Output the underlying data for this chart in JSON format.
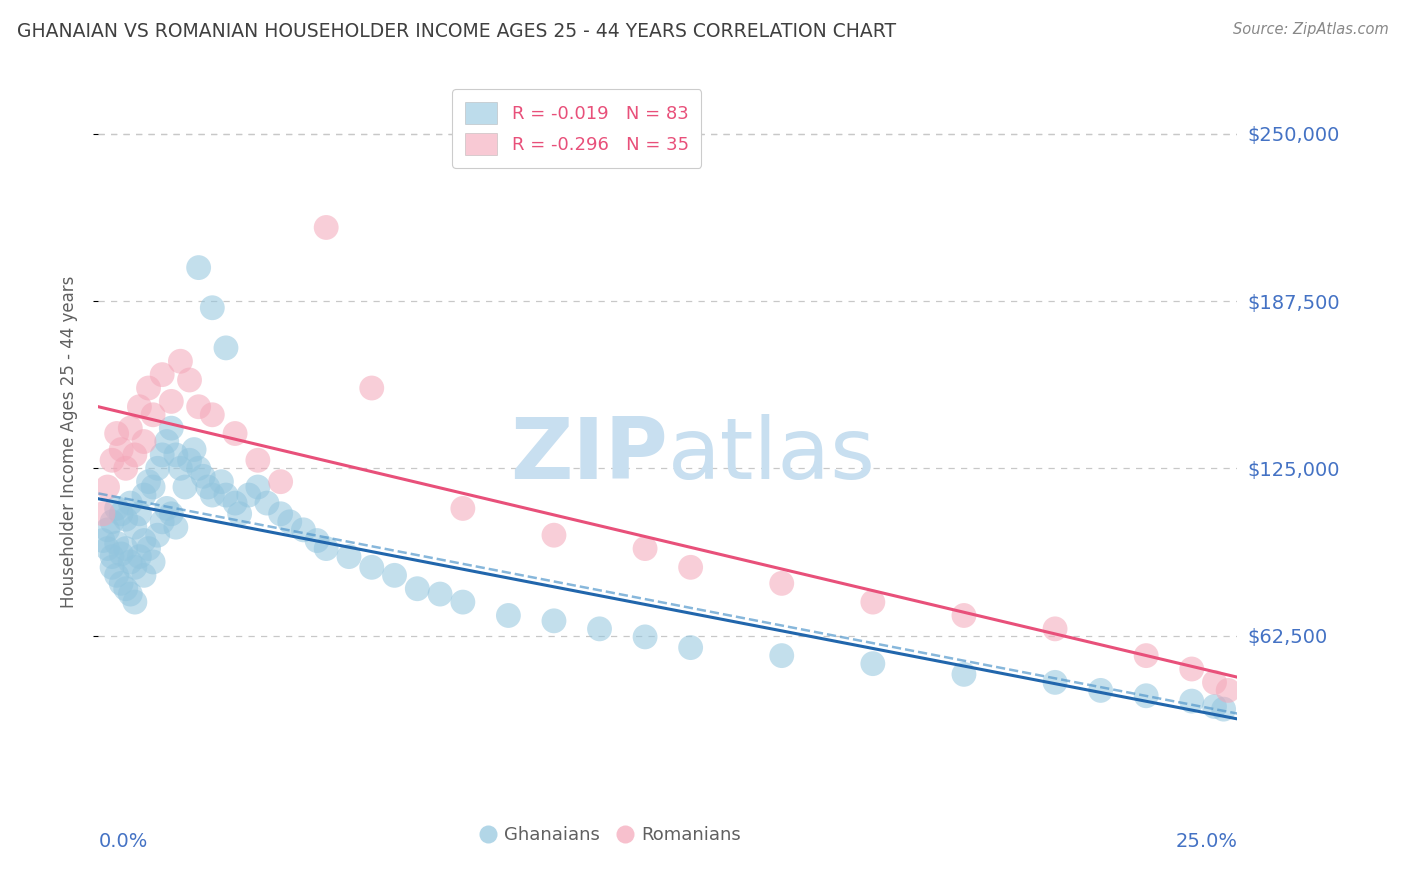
{
  "title": "GHANAIAN VS ROMANIAN HOUSEHOLDER INCOME AGES 25 - 44 YEARS CORRELATION CHART",
  "source": "Source: ZipAtlas.com",
  "ylabel": "Householder Income Ages 25 - 44 years",
  "ytick_labels": [
    "$62,500",
    "$125,000",
    "$187,500",
    "$250,000"
  ],
  "ytick_values": [
    62500,
    125000,
    187500,
    250000
  ],
  "ymin": 0,
  "ymax": 270000,
  "xmin": 0.0,
  "xmax": 0.25,
  "ghanaian_color": "#92c5de",
  "romanian_color": "#f4a6b8",
  "ghanaian_line_color": "#2166ac",
  "romanian_line_color": "#e8507a",
  "ghanaian_R": -0.019,
  "ghanaian_N": 83,
  "romanian_R": -0.296,
  "romanian_N": 35,
  "legend_text_color": "#e8507a",
  "tick_label_color": "#4472c4",
  "title_color": "#404040",
  "source_color": "#888888",
  "axis_label_color": "#606060",
  "grid_color": "#c8c8c8",
  "watermark_color": "#c8dff0",
  "background_color": "#ffffff",
  "gh_x": [
    0.001,
    0.002,
    0.002,
    0.003,
    0.003,
    0.003,
    0.004,
    0.004,
    0.004,
    0.005,
    0.005,
    0.005,
    0.006,
    0.006,
    0.006,
    0.007,
    0.007,
    0.007,
    0.008,
    0.008,
    0.008,
    0.009,
    0.009,
    0.01,
    0.01,
    0.01,
    0.011,
    0.011,
    0.012,
    0.012,
    0.013,
    0.013,
    0.014,
    0.014,
    0.015,
    0.015,
    0.016,
    0.016,
    0.017,
    0.017,
    0.018,
    0.019,
    0.02,
    0.021,
    0.022,
    0.023,
    0.024,
    0.025,
    0.027,
    0.028,
    0.03,
    0.031,
    0.033,
    0.035,
    0.037,
    0.04,
    0.042,
    0.045,
    0.048,
    0.05,
    0.055,
    0.06,
    0.065,
    0.07,
    0.075,
    0.08,
    0.09,
    0.1,
    0.11,
    0.12,
    0.13,
    0.15,
    0.17,
    0.19,
    0.21,
    0.22,
    0.23,
    0.24,
    0.245,
    0.247,
    0.022,
    0.025,
    0.028
  ],
  "gh_y": [
    98000,
    102000,
    95000,
    105000,
    92000,
    88000,
    110000,
    97000,
    85000,
    108000,
    93000,
    82000,
    106000,
    95000,
    80000,
    112000,
    90000,
    78000,
    103000,
    88000,
    75000,
    108000,
    92000,
    115000,
    98000,
    85000,
    120000,
    95000,
    118000,
    90000,
    125000,
    100000,
    130000,
    105000,
    135000,
    110000,
    140000,
    108000,
    130000,
    103000,
    125000,
    118000,
    128000,
    132000,
    125000,
    122000,
    118000,
    115000,
    120000,
    115000,
    112000,
    108000,
    115000,
    118000,
    112000,
    108000,
    105000,
    102000,
    98000,
    95000,
    92000,
    88000,
    85000,
    80000,
    78000,
    75000,
    70000,
    68000,
    65000,
    62000,
    58000,
    55000,
    52000,
    48000,
    45000,
    42000,
    40000,
    38000,
    36000,
    35000,
    200000,
    185000,
    170000
  ],
  "ro_x": [
    0.001,
    0.002,
    0.003,
    0.004,
    0.005,
    0.006,
    0.007,
    0.008,
    0.009,
    0.01,
    0.011,
    0.012,
    0.014,
    0.016,
    0.018,
    0.02,
    0.022,
    0.025,
    0.03,
    0.035,
    0.04,
    0.05,
    0.06,
    0.08,
    0.1,
    0.12,
    0.13,
    0.15,
    0.17,
    0.19,
    0.21,
    0.23,
    0.24,
    0.245,
    0.248
  ],
  "ro_y": [
    108000,
    118000,
    128000,
    138000,
    132000,
    125000,
    140000,
    130000,
    148000,
    135000,
    155000,
    145000,
    160000,
    150000,
    165000,
    158000,
    148000,
    145000,
    138000,
    128000,
    120000,
    215000,
    155000,
    110000,
    100000,
    95000,
    88000,
    82000,
    75000,
    70000,
    65000,
    55000,
    50000,
    45000,
    42000
  ]
}
